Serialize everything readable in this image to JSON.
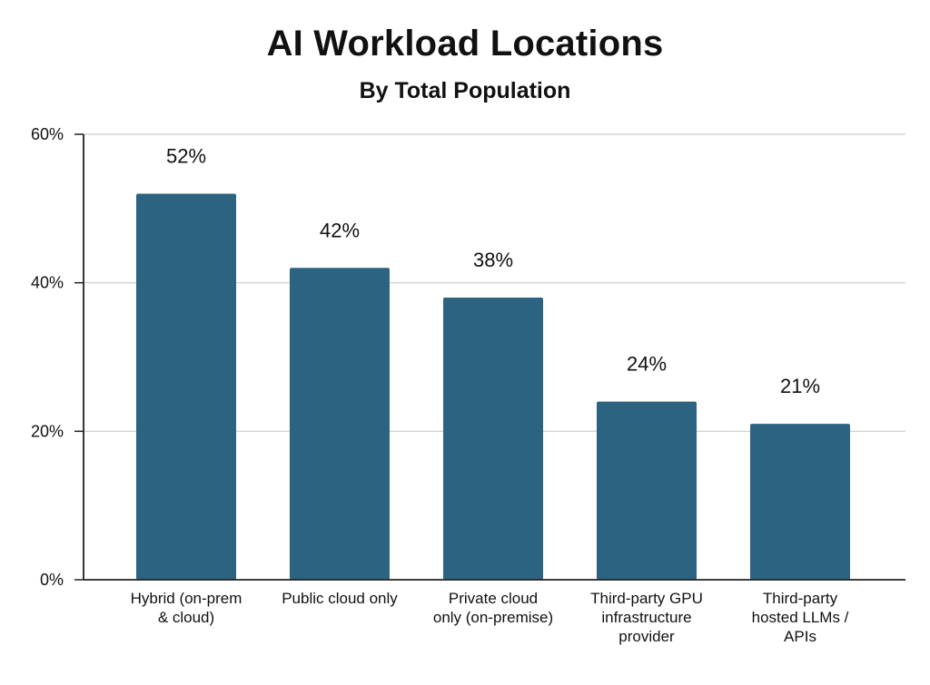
{
  "chart_data": {
    "type": "bar",
    "title": "AI Workload Locations",
    "subtitle": "By Total Population",
    "categories": [
      [
        "Hybrid (on-prem",
        "& cloud)"
      ],
      [
        "Public cloud only"
      ],
      [
        "Private cloud",
        "only (on-premise)"
      ],
      [
        "Third-party GPU",
        "infrastructure",
        "provider"
      ],
      [
        "Third-party",
        "hosted LLMs /",
        "APIs"
      ]
    ],
    "values": [
      52,
      42,
      38,
      24,
      21
    ],
    "value_labels": [
      "52%",
      "42%",
      "38%",
      "24%",
      "21%"
    ],
    "ylim": [
      0,
      60
    ],
    "yticks": [
      0,
      20,
      40,
      60
    ],
    "ytick_labels": [
      "0%",
      "20%",
      "40%",
      "60%"
    ],
    "xlabel": "",
    "ylabel": "",
    "grid": true,
    "bar_color": "#2c6380",
    "grid_color": "#cccccc"
  }
}
